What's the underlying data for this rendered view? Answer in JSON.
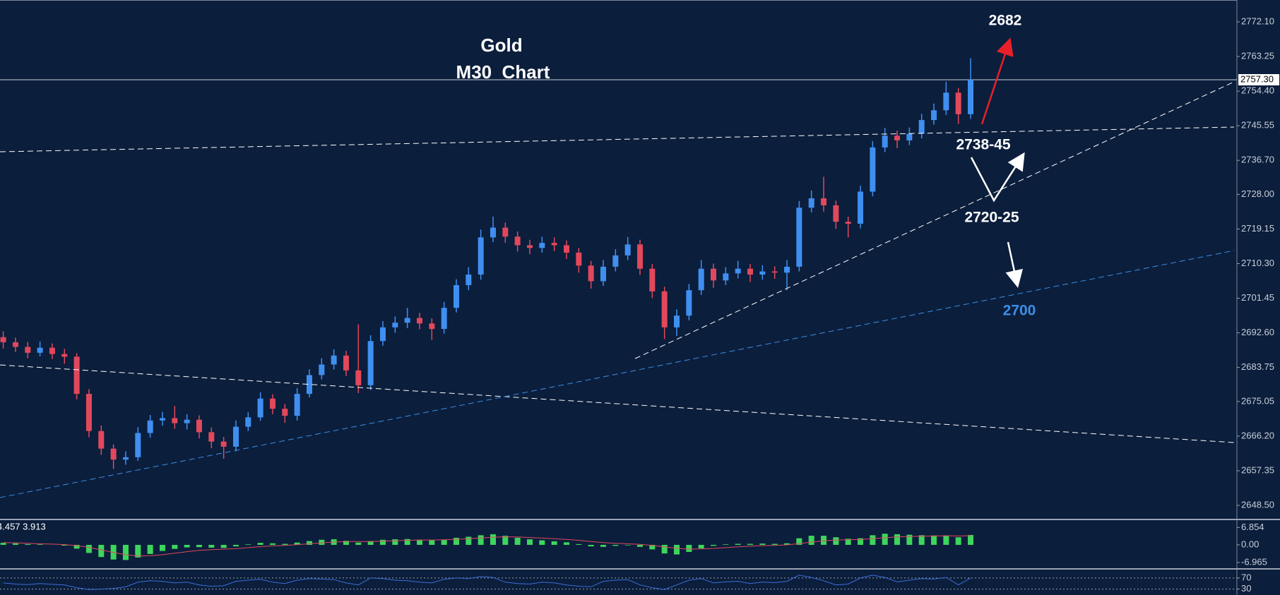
{
  "chart_data": [
    {
      "type": "candlestick",
      "title": "Gold",
      "subtitle": "M30  Chart",
      "up_color": "#3f8ff0",
      "down_color": "#e2485c",
      "ylim": [
        2645.07,
        2777.69
      ],
      "yticks": [
        {
          "value": 2772.1,
          "label": "2772.10"
        },
        {
          "value": 2763.25,
          "label": "2763.25"
        },
        {
          "value": 2754.4,
          "label": "2754.40"
        },
        {
          "value": 2745.55,
          "label": "2745.55"
        },
        {
          "value": 2736.7,
          "label": "2736.70"
        },
        {
          "value": 2728,
          "label": "2728.00"
        },
        {
          "value": 2719.15,
          "label": "2719.15"
        },
        {
          "value": 2710.3,
          "label": "2710.30"
        },
        {
          "value": 2701.45,
          "label": "2701.45"
        },
        {
          "value": 2692.6,
          "label": "2692.60"
        },
        {
          "value": 2683.75,
          "label": "2683.75"
        },
        {
          "value": 2675.05,
          "label": "2675.05"
        },
        {
          "value": 2666.2,
          "label": "2666.20"
        },
        {
          "value": 2657.35,
          "label": "2657.35"
        },
        {
          "value": 2648.5,
          "label": "2648.50"
        }
      ],
      "current_price": {
        "value": 2757.3,
        "label": "2757.30"
      },
      "annotations": [
        {
          "text": "2682",
          "color": "#ffffff"
        },
        {
          "text": "2738-45",
          "color": "#ffffff"
        },
        {
          "text": "2720-25",
          "color": "#ffffff"
        },
        {
          "text": "2700",
          "color": "#3d8ee6"
        }
      ],
      "candles": [
        [
          2691.5,
          2693.0,
          2688.6,
          2690.2
        ],
        [
          2690.2,
          2691.4,
          2687.7,
          2689.0
        ],
        [
          2689.0,
          2690.3,
          2686.1,
          2687.5
        ],
        [
          2687.5,
          2690.4,
          2686.6,
          2688.8
        ],
        [
          2688.8,
          2689.9,
          2685.9,
          2687.2
        ],
        [
          2687.2,
          2688.5,
          2684.7,
          2686.5
        ],
        [
          2686.5,
          2687.4,
          2675.6,
          2677.0
        ],
        [
          2677.0,
          2678.2,
          2665.9,
          2667.5
        ],
        [
          2667.5,
          2668.9,
          2661.4,
          2663.0
        ],
        [
          2663.0,
          2664.1,
          2657.8,
          2660.2
        ],
        [
          2660.2,
          2662.3,
          2658.9,
          2660.8
        ],
        [
          2660.8,
          2668.5,
          2659.9,
          2667.0
        ],
        [
          2667.0,
          2671.6,
          2665.8,
          2670.2
        ],
        [
          2670.2,
          2672.4,
          2668.9,
          2670.8
        ],
        [
          2670.8,
          2673.9,
          2668.1,
          2669.5
        ],
        [
          2669.5,
          2671.8,
          2667.9,
          2670.4
        ],
        [
          2670.4,
          2671.5,
          2665.6,
          2667.2
        ],
        [
          2667.2,
          2668.4,
          2663.1,
          2664.8
        ],
        [
          2664.8,
          2666.0,
          2660.4,
          2663.5
        ],
        [
          2663.5,
          2670.2,
          2662.3,
          2668.6
        ],
        [
          2668.6,
          2672.3,
          2667.5,
          2671.0
        ],
        [
          2671.0,
          2677.4,
          2670.1,
          2675.8
        ],
        [
          2675.8,
          2676.9,
          2671.8,
          2673.2
        ],
        [
          2673.2,
          2674.4,
          2669.6,
          2671.4
        ],
        [
          2671.4,
          2678.5,
          2670.2,
          2677.0
        ],
        [
          2677.0,
          2683.3,
          2676.1,
          2681.8
        ],
        [
          2681.8,
          2686.1,
          2680.7,
          2684.5
        ],
        [
          2684.5,
          2688.4,
          2683.2,
          2686.8
        ],
        [
          2686.8,
          2688.0,
          2681.6,
          2683.0
        ],
        [
          2683.0,
          2694.8,
          2677.2,
          2679.2
        ],
        [
          2679.2,
          2692.0,
          2678.0,
          2690.5
        ],
        [
          2690.5,
          2695.6,
          2689.3,
          2694.0
        ],
        [
          2694.0,
          2696.8,
          2692.6,
          2695.2
        ],
        [
          2695.2,
          2699.0,
          2693.8,
          2696.4
        ],
        [
          2696.4,
          2697.7,
          2693.5,
          2695.0
        ],
        [
          2695.0,
          2696.3,
          2690.8,
          2693.6
        ],
        [
          2693.6,
          2700.5,
          2692.4,
          2699.0
        ],
        [
          2699.0,
          2706.3,
          2697.8,
          2704.8
        ],
        [
          2704.8,
          2709.4,
          2703.5,
          2707.5
        ],
        [
          2707.5,
          2719.0,
          2706.2,
          2717.0
        ],
        [
          2717.0,
          2722.3,
          2715.8,
          2719.5
        ],
        [
          2719.5,
          2720.8,
          2715.6,
          2717.2
        ],
        [
          2717.2,
          2718.5,
          2713.4,
          2715.0
        ],
        [
          2715.0,
          2716.4,
          2712.7,
          2714.3
        ],
        [
          2714.3,
          2717.2,
          2713.1,
          2715.6
        ],
        [
          2715.6,
          2717.0,
          2713.5,
          2715.0
        ],
        [
          2715.0,
          2716.2,
          2711.5,
          2713.1
        ],
        [
          2713.1,
          2714.3,
          2708.0,
          2709.8
        ],
        [
          2709.8,
          2711.0,
          2703.9,
          2705.8
        ],
        [
          2705.8,
          2711.2,
          2704.6,
          2709.5
        ],
        [
          2709.5,
          2714.0,
          2708.3,
          2712.4
        ],
        [
          2712.4,
          2717.1,
          2711.2,
          2715.2
        ],
        [
          2715.2,
          2716.4,
          2707.4,
          2709.0
        ],
        [
          2709.0,
          2710.2,
          2701.5,
          2703.2
        ],
        [
          2703.2,
          2704.4,
          2691.0,
          2694.0
        ],
        [
          2694.0,
          2698.6,
          2691.8,
          2697.0
        ],
        [
          2697.0,
          2705.1,
          2695.8,
          2703.5
        ],
        [
          2703.5,
          2711.2,
          2702.3,
          2709.0
        ],
        [
          2709.0,
          2710.3,
          2704.1,
          2706.0
        ],
        [
          2706.0,
          2709.4,
          2704.8,
          2707.8
        ],
        [
          2707.8,
          2711.0,
          2706.5,
          2709.0
        ],
        [
          2709.0,
          2710.2,
          2705.6,
          2707.5
        ],
        [
          2707.5,
          2709.9,
          2706.2,
          2708.3
        ],
        [
          2708.3,
          2709.6,
          2706.4,
          2708.0
        ],
        [
          2708.0,
          2711.2,
          2703.5,
          2709.5
        ],
        [
          2709.5,
          2726.3,
          2708.3,
          2724.6
        ],
        [
          2724.6,
          2729.0,
          2723.4,
          2727.0
        ],
        [
          2727.0,
          2732.5,
          2723.6,
          2725.2
        ],
        [
          2725.2,
          2726.4,
          2719.2,
          2721.0
        ],
        [
          2721.0,
          2722.3,
          2717.0,
          2720.5
        ],
        [
          2720.5,
          2730.2,
          2719.3,
          2728.7
        ],
        [
          2728.7,
          2741.6,
          2727.5,
          2740.0
        ],
        [
          2740.0,
          2745.0,
          2738.8,
          2743.0
        ],
        [
          2743.0,
          2744.3,
          2739.8,
          2741.8
        ],
        [
          2741.8,
          2745.1,
          2740.6,
          2743.5
        ],
        [
          2743.5,
          2748.6,
          2742.3,
          2747.0
        ],
        [
          2747.0,
          2751.2,
          2745.8,
          2749.5
        ],
        [
          2749.5,
          2756.8,
          2748.3,
          2754.0
        ],
        [
          2754.0,
          2755.2,
          2746.0,
          2748.5
        ],
        [
          2748.5,
          2762.8,
          2747.3,
          2757.3
        ]
      ]
    },
    {
      "type": "macd",
      "label": "4.457 3.913",
      "histogram_color": "#3dd65c",
      "signal_color": "#e2485c",
      "ylim": [
        -9.22,
        9.75
      ],
      "yticks": [
        6.854,
        {
          "value": 0,
          "label": "0.00"
        },
        -6.965
      ],
      "histogram": [
        0.8,
        0.6,
        0.3,
        0.2,
        0.0,
        -0.3,
        -1.5,
        -3.2,
        -4.8,
        -5.8,
        -6.0,
        -5.0,
        -3.6,
        -2.4,
        -1.6,
        -1.0,
        -0.9,
        -1.1,
        -1.2,
        -0.6,
        0.2,
        0.8,
        0.6,
        0.4,
        0.9,
        1.5,
        2.0,
        2.2,
        1.6,
        0.9,
        1.5,
        2.0,
        2.2,
        2.3,
        2.0,
        1.8,
        2.1,
        2.8,
        3.2,
        3.8,
        4.2,
        3.6,
        2.8,
        2.2,
        1.8,
        1.4,
        1.0,
        0.3,
        -0.6,
        -0.8,
        -0.4,
        -0.2,
        -0.8,
        -1.8,
        -3.4,
        -3.8,
        -2.8,
        -1.4,
        -0.4,
        0.2,
        0.4,
        0.4,
        0.5,
        0.4,
        0.6,
        2.6,
        3.6,
        3.6,
        3.0,
        2.4,
        2.6,
        3.8,
        4.4,
        4.2,
        4.0,
        3.8,
        3.7,
        3.7,
        3.0,
        3.9
      ],
      "signal": [
        0.9,
        0.8,
        0.6,
        0.4,
        0.3,
        0.1,
        -0.3,
        -1.0,
        -2.0,
        -3.0,
        -3.9,
        -4.4,
        -4.3,
        -3.9,
        -3.3,
        -2.7,
        -2.2,
        -1.9,
        -1.7,
        -1.5,
        -1.1,
        -0.7,
        -0.4,
        -0.2,
        0.1,
        0.4,
        0.8,
        1.1,
        1.3,
        1.3,
        1.3,
        1.5,
        1.6,
        1.8,
        1.9,
        1.9,
        2.0,
        2.2,
        2.4,
        2.7,
        3.0,
        3.2,
        3.1,
        2.9,
        2.7,
        2.4,
        2.1,
        1.8,
        1.3,
        0.9,
        0.6,
        0.4,
        0.2,
        -0.2,
        -0.8,
        -1.4,
        -1.7,
        -1.6,
        -1.4,
        -1.1,
        -0.8,
        -0.5,
        -0.3,
        -0.2,
        0.0,
        0.5,
        1.1,
        1.6,
        1.9,
        2.0,
        2.1,
        2.4,
        2.8,
        3.1,
        3.3,
        3.4,
        3.5,
        3.6,
        3.5,
        3.6
      ]
    },
    {
      "type": "line",
      "color": "#3a6fd8",
      "ylim": [
        8.5,
        97.7
      ],
      "yticks": [
        70,
        30
      ],
      "values": [
        52,
        48,
        46,
        50,
        47,
        45,
        35,
        28,
        30,
        32,
        38,
        55,
        60,
        58,
        52,
        55,
        45,
        40,
        42,
        58,
        62,
        65,
        55,
        50,
        62,
        68,
        66,
        64,
        52,
        45,
        70,
        68,
        62,
        60,
        55,
        52,
        65,
        70,
        68,
        75,
        72,
        55,
        50,
        48,
        55,
        52,
        45,
        40,
        38,
        58,
        62,
        64,
        45,
        35,
        28,
        45,
        62,
        68,
        52,
        56,
        58,
        50,
        55,
        53,
        58,
        80,
        72,
        60,
        45,
        48,
        70,
        80,
        72,
        56,
        62,
        68,
        66,
        72,
        45,
        70
      ]
    }
  ]
}
